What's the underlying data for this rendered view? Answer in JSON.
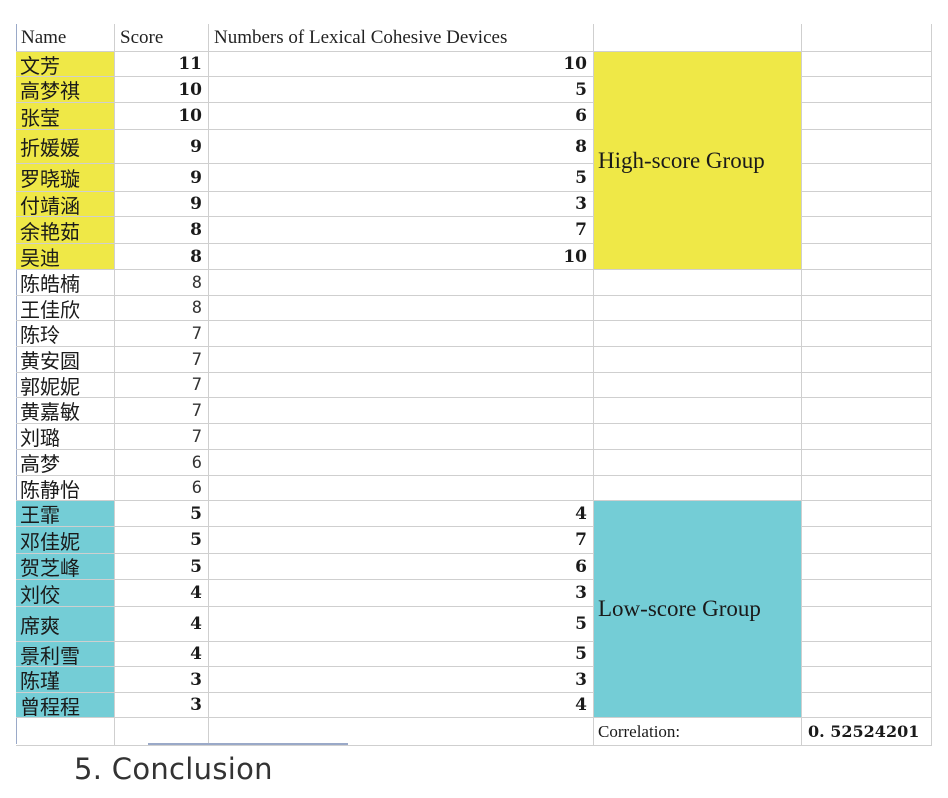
{
  "headers": {
    "name": "Name",
    "score": "Score",
    "devices": "Numbers of Lexical Cohesive Devices"
  },
  "rows": [
    {
      "name": "文芳",
      "score": "11",
      "devices": "10",
      "group": "high"
    },
    {
      "name": "高梦祺",
      "score": "10",
      "devices": "5",
      "group": "high"
    },
    {
      "name": "张莹",
      "score": "10",
      "devices": "6",
      "group": "high"
    },
    {
      "name": "折媛媛",
      "score": "9",
      "devices": "8",
      "group": "high"
    },
    {
      "name": "罗晓璇",
      "score": "9",
      "devices": "5",
      "group": "high"
    },
    {
      "name": "付靖涵",
      "score": "9",
      "devices": "3",
      "group": "high"
    },
    {
      "name": "余艳茹",
      "score": "8",
      "devices": "7",
      "group": "high"
    },
    {
      "name": "吴迪",
      "score": "8",
      "devices": "10",
      "group": "high"
    },
    {
      "name": "陈皓楠",
      "score": "8",
      "devices": "",
      "group": "none"
    },
    {
      "name": "王佳欣",
      "score": "8",
      "devices": "",
      "group": "none"
    },
    {
      "name": "陈玲",
      "score": "7",
      "devices": "",
      "group": "none"
    },
    {
      "name": "黄安圆",
      "score": "7",
      "devices": "",
      "group": "none"
    },
    {
      "name": "郭妮妮",
      "score": "7",
      "devices": "",
      "group": "none"
    },
    {
      "name": "黄嘉敏",
      "score": "7",
      "devices": "",
      "group": "none"
    },
    {
      "name": "刘璐",
      "score": "7",
      "devices": "",
      "group": "none"
    },
    {
      "name": "高梦",
      "score": "6",
      "devices": "",
      "group": "none"
    },
    {
      "name": "陈静怡",
      "score": "6",
      "devices": "",
      "group": "none"
    },
    {
      "name": "王霏",
      "score": "5",
      "devices": "4",
      "group": "low"
    },
    {
      "name": "邓佳妮",
      "score": "5",
      "devices": "7",
      "group": "low"
    },
    {
      "name": "贺芝峰",
      "score": "5",
      "devices": "6",
      "group": "low"
    },
    {
      "name": "刘佼",
      "score": "4",
      "devices": "3",
      "group": "low"
    },
    {
      "name": "席爽",
      "score": "4",
      "devices": "5",
      "group": "low"
    },
    {
      "name": "景利雪",
      "score": "4",
      "devices": "5",
      "group": "low"
    },
    {
      "name": "陈瑾",
      "score": "3",
      "devices": "3",
      "group": "low"
    },
    {
      "name": "曾程程",
      "score": "3",
      "devices": "4",
      "group": "low"
    }
  ],
  "groups": {
    "high_label": "High-score Group",
    "low_label": "Low-score Group"
  },
  "correlation": {
    "label": "Correlation:",
    "value": "0. 52524201"
  },
  "conclusion_heading": "5. Conclusion",
  "colors": {
    "high_group": "#efe847",
    "low_group": "#74cdd6",
    "grid": "#cfcfcf"
  }
}
